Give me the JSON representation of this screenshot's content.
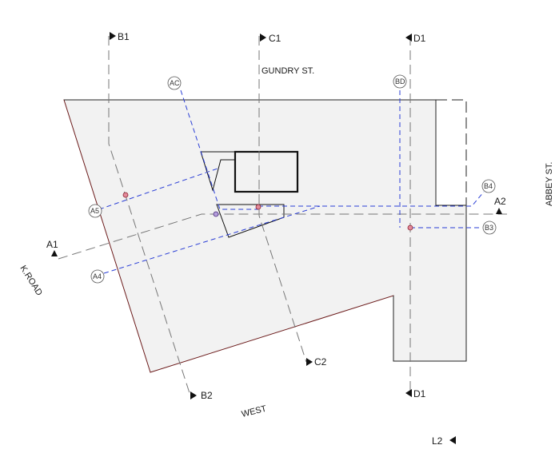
{
  "streets": {
    "north": "GUNDRY ST.",
    "east": "ABBEY ST.",
    "west": "K.ROAD",
    "south": "WEST"
  },
  "gridlines": {
    "b1": "B1",
    "b2": "B2",
    "c1": "C1",
    "c2": "C2",
    "d1_top": "D1",
    "d1_bottom": "D1",
    "a1": "A1",
    "a2": "A2",
    "l2": "L2"
  },
  "section_markers": {
    "ac": "AC",
    "bd": "BD",
    "a4": "A4",
    "a5": "A5",
    "b3": "B3",
    "b4": "B4"
  },
  "colors": {
    "site_fill": "#f2f2f2",
    "site_boundary": "#6b1a1a",
    "section_line": "#2b3fd6",
    "grid_line": "#777777"
  }
}
